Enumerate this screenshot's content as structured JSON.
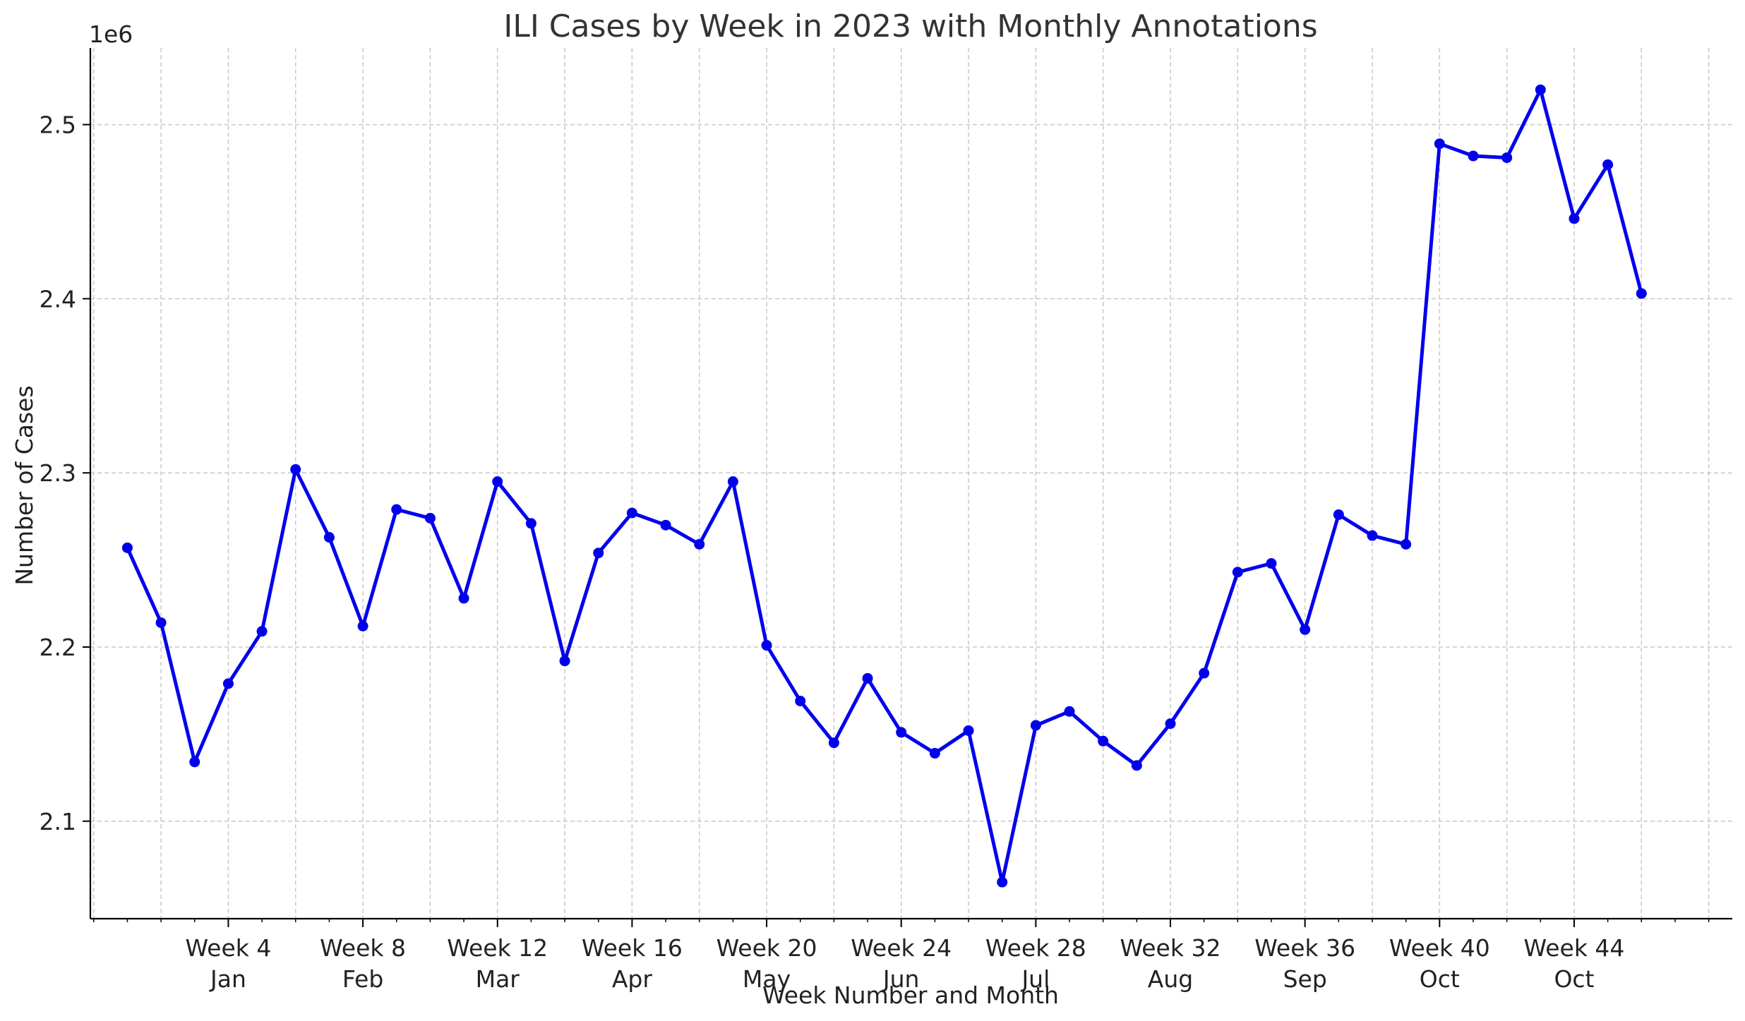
{
  "chart_data": {
    "type": "line",
    "title": "ILI Cases by Week in 2023 with Monthly Annotations",
    "xlabel": "Week Number and Month",
    "ylabel": "Number of Cases",
    "y_offset_label": "1e6",
    "xlim": [
      -0.1,
      48.7
    ],
    "ylim": [
      2.044,
      2.544
    ],
    "grid": true,
    "color": "#0000ee",
    "x_ticks": [
      {
        "x": 4,
        "week": "Week 4",
        "month": "Jan"
      },
      {
        "x": 8,
        "week": "Week 8",
        "month": "Feb"
      },
      {
        "x": 12,
        "week": "Week 12",
        "month": "Mar"
      },
      {
        "x": 16,
        "week": "Week 16",
        "month": "Apr"
      },
      {
        "x": 20,
        "week": "Week 20",
        "month": "May"
      },
      {
        "x": 24,
        "week": "Week 24",
        "month": "Jun"
      },
      {
        "x": 28,
        "week": "Week 28",
        "month": "Jul"
      },
      {
        "x": 32,
        "week": "Week 32",
        "month": "Aug"
      },
      {
        "x": 36,
        "week": "Week 36",
        "month": "Sep"
      },
      {
        "x": 40,
        "week": "Week 40",
        "month": "Oct"
      },
      {
        "x": 44,
        "week": "Week 44",
        "month": "Oct"
      }
    ],
    "y_ticks": [
      {
        "value": 2.1,
        "label": "2.1"
      },
      {
        "value": 2.2,
        "label": "2.2"
      },
      {
        "value": 2.3,
        "label": "2.3"
      },
      {
        "value": 2.4,
        "label": "2.4"
      },
      {
        "value": 2.5,
        "label": "2.5"
      }
    ],
    "x": [
      1,
      2,
      3,
      4,
      5,
      6,
      7,
      8,
      9,
      10,
      11,
      12,
      13,
      14,
      15,
      16,
      17,
      18,
      19,
      20,
      21,
      22,
      23,
      24,
      25,
      26,
      27,
      28,
      29,
      30,
      31,
      32,
      33,
      34,
      35,
      36,
      37,
      38,
      39,
      40,
      41,
      42,
      43,
      44,
      45,
      46
    ],
    "values": [
      2.257,
      2.214,
      2.134,
      2.179,
      2.209,
      2.302,
      2.263,
      2.212,
      2.279,
      2.274,
      2.228,
      2.295,
      2.271,
      2.192,
      2.254,
      2.277,
      2.27,
      2.259,
      2.295,
      2.201,
      2.169,
      2.145,
      2.182,
      2.151,
      2.139,
      2.152,
      2.065,
      2.155,
      2.163,
      2.146,
      2.132,
      2.156,
      2.185,
      2.243,
      2.248,
      2.21,
      2.276,
      2.264,
      2.259,
      2.489,
      2.482,
      2.481,
      2.52,
      2.446,
      2.477,
      2.403
    ]
  }
}
